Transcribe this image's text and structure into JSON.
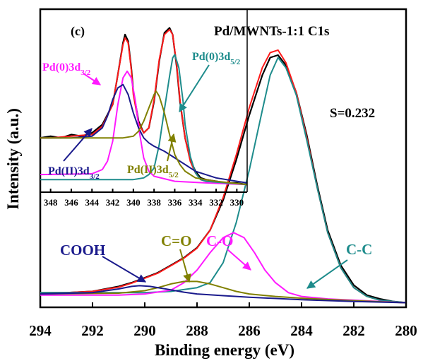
{
  "chart_data": [
    {
      "type": "line",
      "panel": "main",
      "xlabel": "Binding energy (eV)",
      "ylabel": "Intensity (a.u.)",
      "xlim": [
        294,
        280
      ],
      "x_reversed": true,
      "x_ticks": [
        294,
        292,
        290,
        288,
        286,
        284,
        282,
        280
      ],
      "y_ticks_shown": false,
      "grid": false,
      "series": [
        {
          "color": "#000000",
          "role": "measured",
          "x": [
            294,
            293,
            292,
            291,
            290.5,
            290,
            289.5,
            289,
            288.5,
            288,
            287.5,
            287,
            286.5,
            286,
            285.5,
            285.2,
            284.9,
            284.6,
            284.2,
            283.8,
            283.4,
            283,
            282.5,
            282,
            281.5,
            281,
            280.5,
            280
          ],
          "y": [
            0.05,
            0.05,
            0.055,
            0.075,
            0.09,
            0.11,
            0.13,
            0.16,
            0.19,
            0.23,
            0.3,
            0.42,
            0.58,
            0.76,
            0.92,
            0.99,
            1.0,
            0.96,
            0.85,
            0.68,
            0.48,
            0.3,
            0.16,
            0.08,
            0.04,
            0.025,
            0.015,
            0.01
          ]
        },
        {
          "color": "#ff1a1a",
          "role": "envelope",
          "x": [
            294,
            293,
            292,
            291,
            290.5,
            290,
            289.5,
            289,
            288.5,
            288,
            287.5,
            287,
            286.5,
            286,
            285.5,
            285.2,
            284.9,
            284.6,
            284.2,
            283.8,
            283.4,
            283,
            282.5,
            282,
            281.5,
            281,
            280.5,
            280
          ],
          "y": [
            0.05,
            0.05,
            0.055,
            0.072,
            0.088,
            0.108,
            0.128,
            0.158,
            0.188,
            0.228,
            0.3,
            0.43,
            0.6,
            0.79,
            0.95,
            1.01,
            1.02,
            0.97,
            0.85,
            0.67,
            0.47,
            0.29,
            0.15,
            0.07,
            0.035,
            0.02,
            0.012,
            0.01
          ]
        },
        {
          "name": "C-C",
          "color": "#1e8c8c",
          "role": "component",
          "x": [
            294,
            290,
            289,
            288,
            287.5,
            287,
            286.5,
            286,
            285.5,
            285.2,
            284.9,
            284.6,
            284.2,
            283.8,
            283.4,
            283,
            282.5,
            282,
            281.5,
            281,
            280
          ],
          "y": [
            0.05,
            0.05,
            0.055,
            0.07,
            0.09,
            0.17,
            0.33,
            0.54,
            0.78,
            0.92,
            0.99,
            0.95,
            0.84,
            0.66,
            0.47,
            0.29,
            0.15,
            0.07,
            0.035,
            0.02,
            0.01
          ]
        },
        {
          "name": "C-O",
          "color": "#ff1aff",
          "role": "component",
          "x": [
            294,
            291,
            290,
            289,
            288.5,
            288,
            287.5,
            287,
            286.6,
            286.2,
            285.8,
            285.4,
            285,
            284.5,
            284,
            283,
            282,
            280
          ],
          "y": [
            0.04,
            0.04,
            0.045,
            0.06,
            0.09,
            0.14,
            0.21,
            0.27,
            0.29,
            0.27,
            0.21,
            0.14,
            0.09,
            0.05,
            0.035,
            0.025,
            0.02,
            0.01
          ]
        },
        {
          "name": "C=O",
          "color": "#808000",
          "role": "component",
          "x": [
            294,
            291,
            290,
            289.5,
            289,
            288.5,
            288,
            287.5,
            287,
            286.5,
            286,
            285,
            284,
            282,
            280
          ],
          "y": [
            0.045,
            0.048,
            0.058,
            0.07,
            0.085,
            0.095,
            0.095,
            0.085,
            0.07,
            0.055,
            0.045,
            0.035,
            0.028,
            0.018,
            0.01
          ]
        },
        {
          "name": "COOH",
          "color": "#1a1a8c",
          "role": "component",
          "x": [
            294,
            292,
            291,
            290.5,
            290.2,
            289.8,
            289.2,
            288.5,
            288,
            287,
            286,
            284,
            282,
            280
          ],
          "y": [
            0.045,
            0.05,
            0.065,
            0.075,
            0.078,
            0.075,
            0.065,
            0.052,
            0.045,
            0.038,
            0.032,
            0.022,
            0.015,
            0.01
          ]
        }
      ],
      "annotations": {
        "title": "Pd/MWNTs-1:1 C1s",
        "panel_label": "(c)",
        "ratio": "S=0.232",
        "cc": "C-C",
        "co": "C-O",
        "c_eq_o": "C=O",
        "cooh": "COOH"
      }
    },
    {
      "type": "line",
      "panel": "inset",
      "xlim": [
        349,
        329
      ],
      "x_reversed": true,
      "x_ticks": [
        348,
        346,
        344,
        342,
        340,
        338,
        336,
        334,
        332,
        330
      ],
      "series": [
        {
          "color": "#000000",
          "role": "measured",
          "x": [
            349,
            348,
            347,
            346,
            345,
            344,
            343,
            342,
            341.5,
            341,
            340.8,
            340.5,
            340.2,
            340,
            339.5,
            339,
            338.5,
            338,
            337.5,
            337,
            336.5,
            336.2,
            335.8,
            335.5,
            335,
            334.5,
            334,
            333.5,
            333,
            332,
            331,
            330,
            329
          ],
          "y": [
            0.3,
            0.31,
            0.3,
            0.32,
            0.31,
            0.33,
            0.38,
            0.5,
            0.68,
            0.87,
            0.92,
            0.88,
            0.72,
            0.58,
            0.4,
            0.33,
            0.36,
            0.52,
            0.76,
            0.93,
            0.96,
            0.92,
            0.72,
            0.52,
            0.3,
            0.17,
            0.1,
            0.06,
            0.05,
            0.04,
            0.03,
            0.03,
            0.02
          ]
        },
        {
          "color": "#ff1a1a",
          "role": "envelope",
          "x": [
            349,
            348,
            346,
            344,
            343,
            342,
            341.5,
            341,
            340.8,
            340.5,
            340.2,
            340,
            339.5,
            339,
            338.5,
            338,
            337.5,
            337,
            336.5,
            336.2,
            335.8,
            335.5,
            335,
            334.5,
            334,
            333.5,
            333,
            331,
            329
          ],
          "y": [
            0.3,
            0.3,
            0.31,
            0.32,
            0.37,
            0.5,
            0.68,
            0.86,
            0.9,
            0.87,
            0.71,
            0.56,
            0.39,
            0.33,
            0.36,
            0.53,
            0.77,
            0.92,
            0.95,
            0.92,
            0.73,
            0.53,
            0.3,
            0.16,
            0.09,
            0.05,
            0.04,
            0.03,
            0.02
          ]
        },
        {
          "color": "#ff1aff",
          "role": "component",
          "x": [
            349,
            344,
            343,
            342.5,
            342,
            341.5,
            341,
            340.6,
            340.2,
            339.8,
            339.4,
            339,
            338.5,
            338,
            336,
            333,
            329
          ],
          "y": [
            0.08,
            0.085,
            0.11,
            0.16,
            0.28,
            0.5,
            0.66,
            0.7,
            0.66,
            0.52,
            0.33,
            0.18,
            0.1,
            0.07,
            0.04,
            0.03,
            0.02
          ]
        },
        {
          "color": "#1e8c8c",
          "role": "component",
          "x": [
            349,
            340,
            339,
            338.5,
            338,
            337.5,
            337,
            336.5,
            336.2,
            336,
            335.6,
            335.2,
            335,
            334.5,
            334,
            333.5,
            333,
            331,
            329
          ],
          "y": [
            0.05,
            0.05,
            0.06,
            0.08,
            0.12,
            0.26,
            0.47,
            0.67,
            0.78,
            0.8,
            0.72,
            0.52,
            0.38,
            0.19,
            0.09,
            0.05,
            0.04,
            0.03,
            0.02
          ]
        },
        {
          "color": "#1a1a8c",
          "role": "component",
          "x": [
            349,
            346,
            344,
            343,
            342.5,
            342,
            341.5,
            341,
            340.5,
            340,
            339.5,
            339,
            338.5,
            338,
            337,
            336,
            334,
            332,
            330,
            329
          ],
          "y": [
            0.3,
            0.3,
            0.31,
            0.36,
            0.43,
            0.53,
            0.6,
            0.62,
            0.56,
            0.45,
            0.36,
            0.3,
            0.27,
            0.25,
            0.22,
            0.18,
            0.1,
            0.06,
            0.04,
            0.03
          ]
        },
        {
          "color": "#808000",
          "role": "component",
          "x": [
            349,
            341,
            340,
            339.5,
            339,
            338.5,
            338,
            337.8,
            337.5,
            337,
            336.5,
            336,
            335.5,
            335,
            334,
            332,
            329
          ],
          "y": [
            0.3,
            0.3,
            0.31,
            0.34,
            0.4,
            0.48,
            0.56,
            0.58,
            0.55,
            0.45,
            0.32,
            0.2,
            0.14,
            0.1,
            0.06,
            0.04,
            0.02
          ]
        }
      ],
      "annotations": {
        "pd0_32_base": "Pd(0)3d",
        "pd0_32_sub": "3/2",
        "pd0_52_base": "Pd(0)3d",
        "pd0_52_sub": "5/2",
        "pd2_32_base": "Pd(II)3d",
        "pd2_32_sub": "3/2",
        "pd2_52_base": "Pd(II)3d",
        "pd2_52_sub": "5/2"
      }
    }
  ]
}
